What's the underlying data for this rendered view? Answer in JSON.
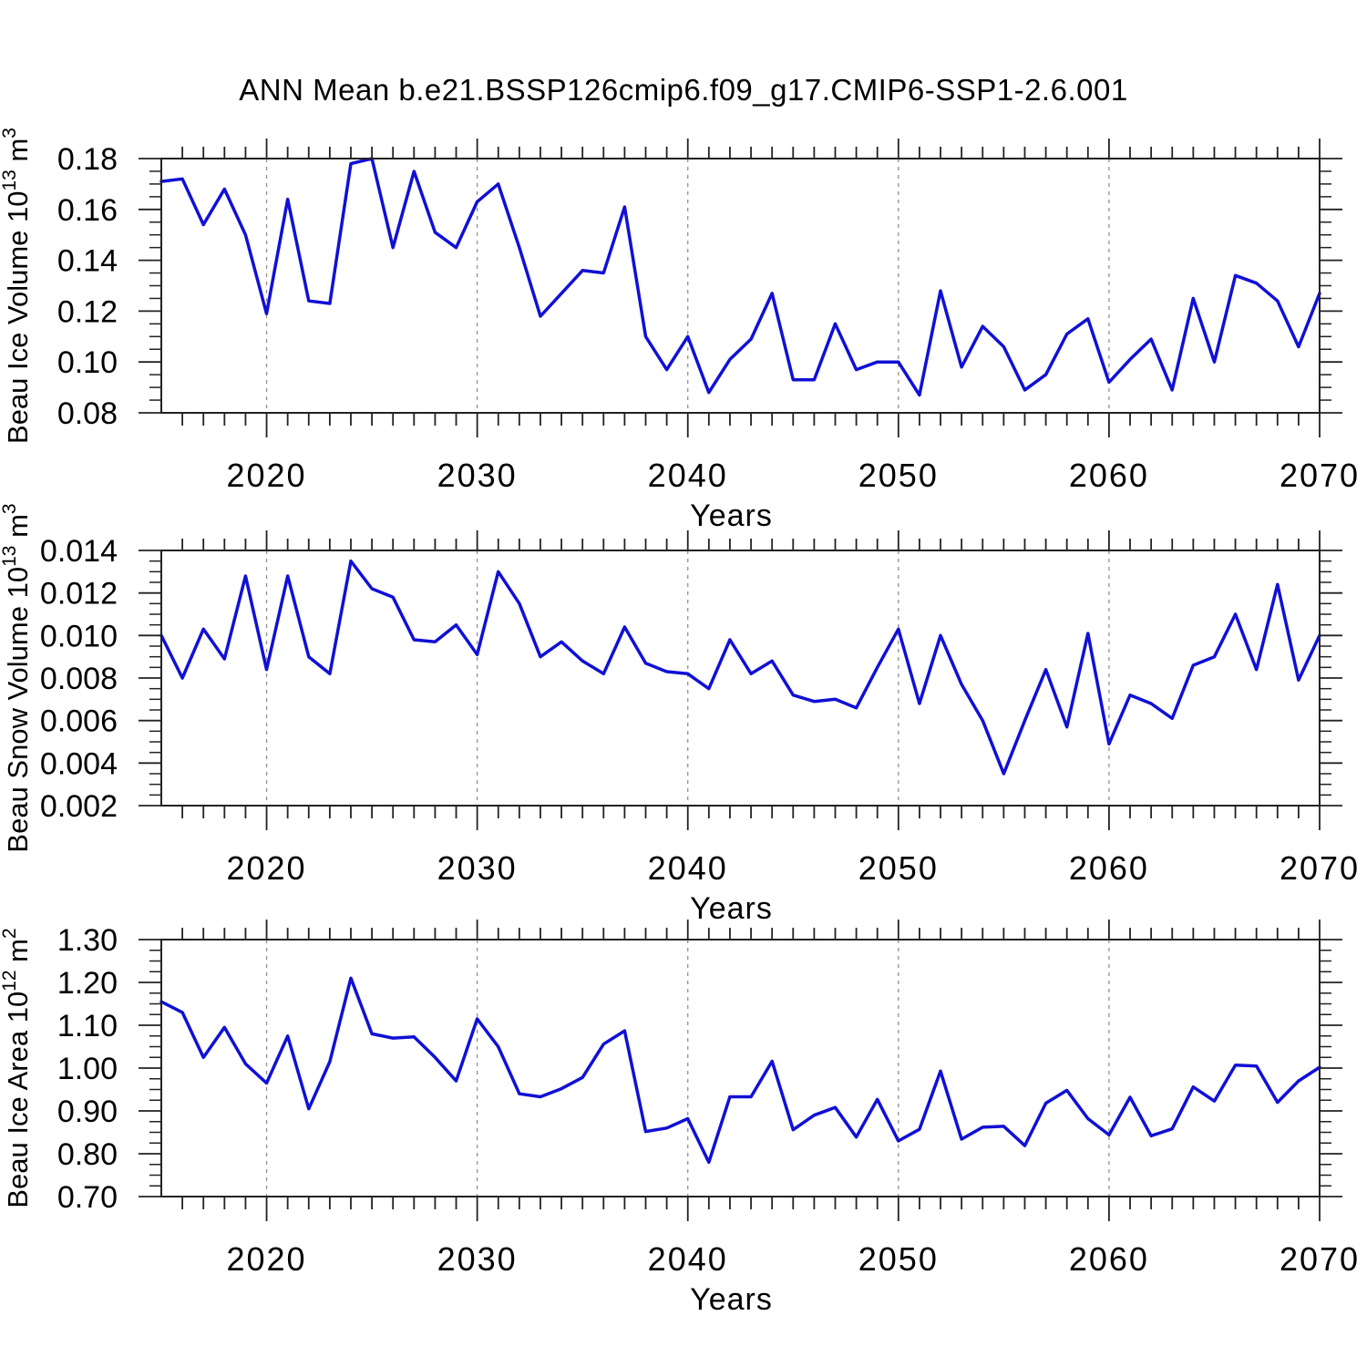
{
  "title": "ANN Mean b.e21.BSSP126cmip6.f09_g17.CMIP6-SSP1-2.6.001",
  "colors": {
    "line": "#1010d5",
    "grid": "#909090",
    "axis": "#222222",
    "text": "#000000",
    "background": "#ffffff"
  },
  "x_axis": {
    "label": "Years",
    "start_year": 2015,
    "end_year": 2070,
    "major_ticks": [
      2020,
      2030,
      2040,
      2050,
      2060,
      2070
    ],
    "major_tick_labels": [
      "2020",
      "2030",
      "2040",
      "2050",
      "2060",
      "2070"
    ],
    "gridline_years": [
      2020,
      2030,
      2040,
      2050,
      2060
    ]
  },
  "chart_data": [
    {
      "type": "line",
      "name": "beau-ice-volume",
      "ylabel": "Beau Ice Volume 10^13 m^3",
      "ylabel_parts": [
        {
          "text": "Beau Ice Volume 10",
          "sup": false
        },
        {
          "text": "13",
          "sup": true
        },
        {
          "text": " m",
          "sup": false
        },
        {
          "text": "3",
          "sup": true
        }
      ],
      "xlabel": "Years",
      "ylim": [
        0.08,
        0.18
      ],
      "ytick_values": [
        0.08,
        0.1,
        0.12,
        0.14,
        0.16,
        0.18
      ],
      "ytick_labels": [
        "0.08",
        "0.10",
        "0.12",
        "0.14",
        "0.16",
        "0.18"
      ],
      "y_minor_step": 0.005,
      "values": [
        0.171,
        0.172,
        0.154,
        0.168,
        0.15,
        0.119,
        0.164,
        0.124,
        0.123,
        0.178,
        0.18,
        0.145,
        0.175,
        0.151,
        0.145,
        0.163,
        0.17,
        0.145,
        0.118,
        0.127,
        0.136,
        0.135,
        0.161,
        0.11,
        0.097,
        0.11,
        0.088,
        0.101,
        0.109,
        0.127,
        0.093,
        0.093,
        0.115,
        0.097,
        0.1,
        0.1,
        0.087,
        0.128,
        0.098,
        0.114,
        0.106,
        0.089,
        0.095,
        0.111,
        0.117,
        0.092,
        0.101,
        0.109,
        0.089,
        0.125,
        0.1,
        0.134,
        0.131,
        0.124,
        0.106,
        0.127
      ]
    },
    {
      "type": "line",
      "name": "beau-snow-volume",
      "ylabel": "Beau Snow Volume 10^13 m^3",
      "ylabel_parts": [
        {
          "text": "Beau Snow Volume 10",
          "sup": false
        },
        {
          "text": "13",
          "sup": true
        },
        {
          "text": " m",
          "sup": false
        },
        {
          "text": "3",
          "sup": true
        }
      ],
      "xlabel": "Years",
      "ylim": [
        0.002,
        0.014
      ],
      "ytick_values": [
        0.002,
        0.004,
        0.006,
        0.008,
        0.01,
        0.012,
        0.014
      ],
      "ytick_labels": [
        "0.002",
        "0.004",
        "0.006",
        "0.008",
        "0.010",
        "0.012",
        "0.014"
      ],
      "y_minor_step": 0.0005,
      "values": [
        0.01,
        0.008,
        0.0103,
        0.0089,
        0.0128,
        0.0084,
        0.0128,
        0.009,
        0.0082,
        0.0135,
        0.0122,
        0.0118,
        0.0098,
        0.0097,
        0.0105,
        0.0091,
        0.013,
        0.0115,
        0.009,
        0.0097,
        0.0088,
        0.0082,
        0.0104,
        0.0087,
        0.0083,
        0.0082,
        0.0075,
        0.0098,
        0.0082,
        0.0088,
        0.0072,
        0.0069,
        0.007,
        0.0066,
        0.0085,
        0.0103,
        0.0068,
        0.01,
        0.0077,
        0.006,
        0.0035,
        0.006,
        0.0084,
        0.0057,
        0.0101,
        0.0049,
        0.0072,
        0.0068,
        0.0061,
        0.0086,
        0.009,
        0.011,
        0.0084,
        0.0124,
        0.0079,
        0.01
      ]
    },
    {
      "type": "line",
      "name": "beau-ice-area",
      "ylabel": "Beau Ice Area 10^12 m^2",
      "ylabel_parts": [
        {
          "text": "Beau Ice Area 10",
          "sup": false
        },
        {
          "text": "12",
          "sup": true
        },
        {
          "text": " m",
          "sup": false
        },
        {
          "text": "2",
          "sup": true
        }
      ],
      "xlabel": "Years",
      "ylim": [
        0.7,
        1.3
      ],
      "ytick_values": [
        0.7,
        0.8,
        0.9,
        1.0,
        1.1,
        1.2,
        1.3
      ],
      "ytick_labels": [
        "0.70",
        "0.80",
        "0.90",
        "1.00",
        "1.10",
        "1.20",
        "1.30"
      ],
      "y_minor_step": 0.025,
      "values": [
        1.155,
        1.13,
        1.025,
        1.095,
        1.01,
        0.965,
        1.075,
        0.905,
        1.015,
        1.21,
        1.08,
        1.07,
        1.073,
        1.025,
        0.97,
        1.115,
        1.05,
        0.94,
        0.933,
        0.952,
        0.978,
        1.056,
        1.087,
        0.852,
        0.86,
        0.882,
        0.78,
        0.933,
        0.933,
        1.016,
        0.856,
        0.89,
        0.908,
        0.839,
        0.927,
        0.83,
        0.857,
        0.993,
        0.834,
        0.862,
        0.864,
        0.819,
        0.918,
        0.948,
        0.882,
        0.844,
        0.932,
        0.842,
        0.858,
        0.956,
        0.923,
        1.007,
        1.005,
        0.92,
        0.97,
        1.002
      ]
    }
  ]
}
